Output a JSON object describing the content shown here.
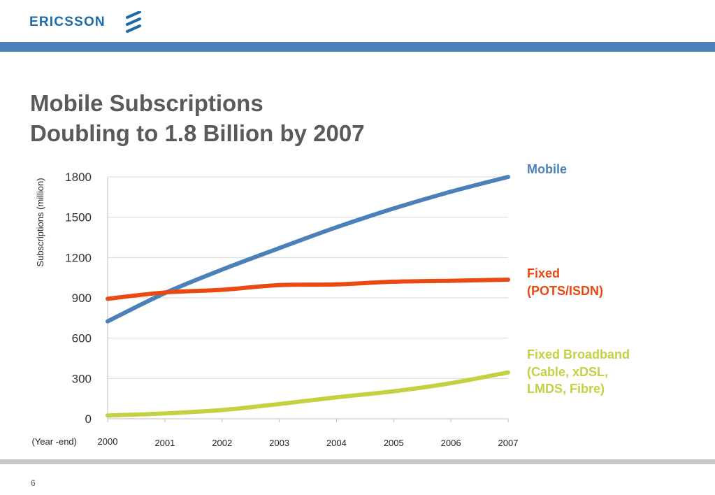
{
  "header": {
    "logo_text": "ERICSSON",
    "logo_icon": "ericsson-stripes-icon",
    "brand_color": "#1c6aa8",
    "bar_color": "#4b81b8"
  },
  "title": {
    "line1": "Mobile Subscriptions",
    "line2": "Doubling to 1.8 Billion by 2007"
  },
  "chart_data": {
    "type": "line",
    "x": [
      "2000",
      "2001",
      "2002",
      "2003",
      "2004",
      "2005",
      "2006",
      "2007"
    ],
    "ylabel": "Subscriptions (million)",
    "xlabel": "(Year -end)",
    "ylim": [
      0,
      1800
    ],
    "yticks": [
      0,
      300,
      600,
      900,
      1200,
      1500,
      1800
    ],
    "grid": true,
    "legend_placement": "right",
    "series": [
      {
        "key": "mobile",
        "name": "Mobile",
        "color": "#4b81b8",
        "values": [
          725,
          935,
          1110,
          1270,
          1425,
          1565,
          1690,
          1800
        ]
      },
      {
        "key": "fixed",
        "name": "Fixed\n(POTS/ISDN)",
        "color": "#ea4a12",
        "values": [
          893,
          940,
          960,
          995,
          1000,
          1020,
          1027,
          1035
        ]
      },
      {
        "key": "broadband",
        "name": "Fixed Broadband\n(Cable, xDSL,\nLMDS, Fibre)",
        "color": "#c3d143",
        "values": [
          25,
          40,
          65,
          110,
          160,
          205,
          265,
          345
        ]
      }
    ]
  },
  "footer": {
    "page_number": "6",
    "bar_color": "#c8c8c8"
  }
}
